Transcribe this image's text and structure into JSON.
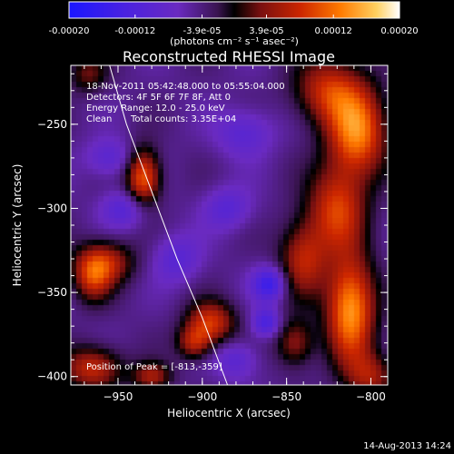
{
  "colors": {
    "background": "#000000",
    "foreground": "#ffffff",
    "colormap": [
      "#1a16ff",
      "#4a22e0",
      "#6a2ac0",
      "#4a1a6a",
      "#000000",
      "#7a1010",
      "#cc2600",
      "#ff7a00",
      "#ffd060",
      "#ffffff"
    ]
  },
  "colorbar": {
    "ticks": [
      "-0.00020",
      "-0.00012",
      "-3.9e-05",
      "3.9e-05",
      "0.00012",
      "0.00020"
    ],
    "tick_values": [
      -0.0002,
      -0.00012,
      -3.9e-05,
      3.9e-05,
      0.00012,
      0.0002
    ],
    "range": [
      -0.0002,
      0.0002
    ],
    "unit_text": "(photons cm⁻² s⁻¹ asec⁻²)"
  },
  "info": {
    "time": "18-Nov-2011 05:42:48.000 to 05:55:04.000",
    "detectors": "Detectors: 4F 5F 6F 7F 8F, Att 0",
    "energy": "Energy Range: 12.0 - 25.0 keV",
    "method": "Clean",
    "counts": "Total counts: 3.35E+04",
    "peak": "Position of Peak = [-813,-359]"
  },
  "footer": {
    "date": "14-Aug-2013 14:24"
  },
  "chart_data": {
    "type": "heatmap",
    "title": "Reconstructed RHESSI Image",
    "xlabel": "Heliocentric X (arcsec)",
    "ylabel": "Heliocentric Y (arcsec)",
    "xlim": [
      -978,
      -790
    ],
    "ylim": [
      -405,
      -215
    ],
    "xticks": [
      -950,
      -900,
      -850,
      -800
    ],
    "yticks": [
      -250,
      -300,
      -350,
      -400
    ],
    "x_tick_labels": [
      "−950",
      "−900",
      "−850",
      "−800"
    ],
    "y_tick_labels": [
      "−250",
      "−300",
      "−350",
      "−400"
    ],
    "value_range": [
      -0.0002,
      0.0002
    ],
    "peak_position": [
      -813,
      -359
    ],
    "limb_curve": [
      [
        -955,
        -215
      ],
      [
        -945,
        -250
      ],
      [
        -930,
        -290
      ],
      [
        -915,
        -330
      ],
      [
        -900,
        -365
      ],
      [
        -885,
        -405
      ]
    ],
    "positive_sources": [
      {
        "x": -812,
        "y": -360,
        "sx": 10,
        "sy": 22,
        "v": 0.00019
      },
      {
        "x": -808,
        "y": -255,
        "sx": 12,
        "sy": 18,
        "v": 0.00017
      },
      {
        "x": -825,
        "y": -230,
        "sx": 14,
        "sy": 14,
        "v": 0.00012
      },
      {
        "x": -820,
        "y": -300,
        "sx": 12,
        "sy": 18,
        "v": 0.00013
      },
      {
        "x": -840,
        "y": -330,
        "sx": 10,
        "sy": 16,
        "v": 0.00011
      },
      {
        "x": -845,
        "y": -380,
        "sx": 8,
        "sy": 10,
        "v": 9e-05
      },
      {
        "x": -800,
        "y": -400,
        "sx": 10,
        "sy": 10,
        "v": 9e-05
      },
      {
        "x": -935,
        "y": -282,
        "sx": 7,
        "sy": 12,
        "v": 0.00016
      },
      {
        "x": -958,
        "y": -332,
        "sx": 12,
        "sy": 9,
        "v": 0.00011
      },
      {
        "x": -965,
        "y": -342,
        "sx": 8,
        "sy": 10,
        "v": 0.0001
      },
      {
        "x": -895,
        "y": -368,
        "sx": 10,
        "sy": 9,
        "v": 0.00013
      },
      {
        "x": -905,
        "y": -380,
        "sx": 7,
        "sy": 7,
        "v": 0.0001
      },
      {
        "x": -965,
        "y": -395,
        "sx": 12,
        "sy": 9,
        "v": 0.00012
      },
      {
        "x": -930,
        "y": -400,
        "sx": 8,
        "sy": 6,
        "v": 0.0001
      },
      {
        "x": -968,
        "y": -220,
        "sx": 8,
        "sy": 8,
        "v": 7e-05
      }
    ],
    "negative_sources": [
      {
        "x": -860,
        "y": -345,
        "sx": 7,
        "sy": 7,
        "v": -0.00011
      },
      {
        "x": -862,
        "y": -368,
        "sx": 6,
        "sy": 6,
        "v": -9e-05
      },
      {
        "x": -945,
        "y": -300,
        "sx": 10,
        "sy": 8,
        "v": -7e-05
      },
      {
        "x": -875,
        "y": -255,
        "sx": 12,
        "sy": 10,
        "v": -6e-05
      },
      {
        "x": -885,
        "y": -300,
        "sx": 10,
        "sy": 9,
        "v": -6e-05
      },
      {
        "x": -915,
        "y": -330,
        "sx": 10,
        "sy": 10,
        "v": -6e-05
      },
      {
        "x": -955,
        "y": -270,
        "sx": 10,
        "sy": 8,
        "v": -6e-05
      },
      {
        "x": -880,
        "y": -390,
        "sx": 9,
        "sy": 8,
        "v": -6e-05
      }
    ]
  }
}
